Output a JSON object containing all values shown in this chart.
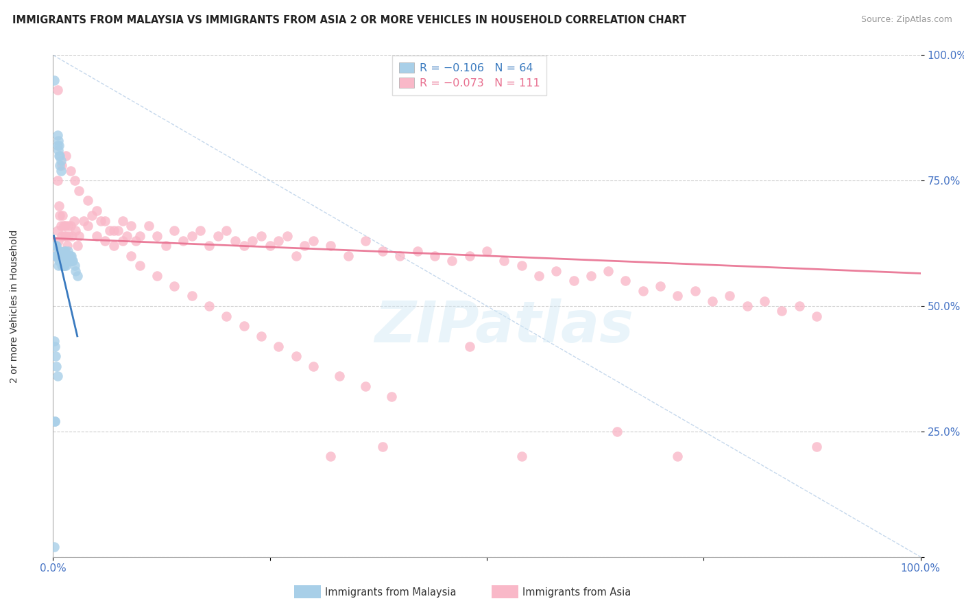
{
  "title": "IMMIGRANTS FROM MALAYSIA VS IMMIGRANTS FROM ASIA 2 OR MORE VEHICLES IN HOUSEHOLD CORRELATION CHART",
  "source": "Source: ZipAtlas.com",
  "ylabel": "2 or more Vehicles in Household",
  "legend_r_blue": "-0.106",
  "legend_n_blue": "64",
  "legend_r_pink": "-0.073",
  "legend_n_pink": "111",
  "legend_label_blue": "Immigrants from Malaysia",
  "legend_label_pink": "Immigrants from Asia",
  "color_blue": "#a8cfe8",
  "color_pink": "#f9b8c8",
  "color_blue_line": "#3a7abf",
  "color_pink_line": "#e87090",
  "color_diag": "#b8cfe8",
  "watermark": "ZIPatlas",
  "blue_x": [
    0.001,
    0.002,
    0.002,
    0.003,
    0.003,
    0.004,
    0.004,
    0.005,
    0.005,
    0.005,
    0.006,
    0.006,
    0.006,
    0.006,
    0.007,
    0.007,
    0.007,
    0.007,
    0.008,
    0.008,
    0.008,
    0.008,
    0.009,
    0.009,
    0.009,
    0.01,
    0.01,
    0.01,
    0.01,
    0.011,
    0.011,
    0.011,
    0.012,
    0.012,
    0.012,
    0.013,
    0.013,
    0.013,
    0.014,
    0.014,
    0.015,
    0.015,
    0.015,
    0.016,
    0.016,
    0.017,
    0.017,
    0.018,
    0.018,
    0.019,
    0.02,
    0.02,
    0.021,
    0.022,
    0.023,
    0.025,
    0.026,
    0.028,
    0.001,
    0.002,
    0.003,
    0.004,
    0.005,
    0.001
  ],
  "blue_y": [
    0.02,
    0.27,
    0.27,
    0.62,
    0.6,
    0.62,
    0.6,
    0.84,
    0.82,
    0.6,
    0.83,
    0.81,
    0.6,
    0.58,
    0.82,
    0.8,
    0.61,
    0.59,
    0.8,
    0.78,
    0.61,
    0.59,
    0.79,
    0.77,
    0.6,
    0.6,
    0.6,
    0.59,
    0.58,
    0.6,
    0.59,
    0.58,
    0.6,
    0.59,
    0.58,
    0.61,
    0.6,
    0.58,
    0.61,
    0.6,
    0.6,
    0.59,
    0.58,
    0.6,
    0.59,
    0.61,
    0.6,
    0.6,
    0.59,
    0.6,
    0.6,
    0.59,
    0.6,
    0.59,
    0.59,
    0.58,
    0.57,
    0.56,
    0.43,
    0.42,
    0.4,
    0.38,
    0.36,
    0.95
  ],
  "pink_x": [
    0.003,
    0.004,
    0.005,
    0.006,
    0.007,
    0.008,
    0.009,
    0.01,
    0.011,
    0.012,
    0.013,
    0.014,
    0.015,
    0.016,
    0.017,
    0.018,
    0.02,
    0.022,
    0.024,
    0.026,
    0.028,
    0.03,
    0.035,
    0.04,
    0.045,
    0.05,
    0.055,
    0.06,
    0.065,
    0.07,
    0.075,
    0.08,
    0.085,
    0.09,
    0.095,
    0.1,
    0.11,
    0.12,
    0.13,
    0.14,
    0.15,
    0.16,
    0.17,
    0.18,
    0.19,
    0.2,
    0.21,
    0.22,
    0.23,
    0.24,
    0.25,
    0.26,
    0.27,
    0.28,
    0.29,
    0.3,
    0.32,
    0.34,
    0.36,
    0.38,
    0.4,
    0.42,
    0.44,
    0.46,
    0.48,
    0.5,
    0.52,
    0.54,
    0.56,
    0.58,
    0.6,
    0.62,
    0.64,
    0.66,
    0.68,
    0.7,
    0.72,
    0.74,
    0.76,
    0.78,
    0.8,
    0.82,
    0.84,
    0.86,
    0.88,
    0.005,
    0.01,
    0.015,
    0.02,
    0.025,
    0.03,
    0.04,
    0.05,
    0.06,
    0.07,
    0.08,
    0.09,
    0.1,
    0.12,
    0.14,
    0.16,
    0.18,
    0.2,
    0.22,
    0.24,
    0.26,
    0.28,
    0.3,
    0.33,
    0.36,
    0.39
  ],
  "pink_y": [
    0.6,
    0.62,
    0.65,
    0.63,
    0.7,
    0.68,
    0.66,
    0.64,
    0.68,
    0.66,
    0.64,
    0.66,
    0.64,
    0.62,
    0.66,
    0.64,
    0.66,
    0.64,
    0.67,
    0.65,
    0.62,
    0.64,
    0.67,
    0.66,
    0.68,
    0.64,
    0.67,
    0.63,
    0.65,
    0.62,
    0.65,
    0.67,
    0.64,
    0.66,
    0.63,
    0.64,
    0.66,
    0.64,
    0.62,
    0.65,
    0.63,
    0.64,
    0.65,
    0.62,
    0.64,
    0.65,
    0.63,
    0.62,
    0.63,
    0.64,
    0.62,
    0.63,
    0.64,
    0.6,
    0.62,
    0.63,
    0.62,
    0.6,
    0.63,
    0.61,
    0.6,
    0.61,
    0.6,
    0.59,
    0.6,
    0.61,
    0.59,
    0.58,
    0.56,
    0.57,
    0.55,
    0.56,
    0.57,
    0.55,
    0.53,
    0.54,
    0.52,
    0.53,
    0.51,
    0.52,
    0.5,
    0.51,
    0.49,
    0.5,
    0.48,
    0.75,
    0.78,
    0.8,
    0.77,
    0.75,
    0.73,
    0.71,
    0.69,
    0.67,
    0.65,
    0.63,
    0.6,
    0.58,
    0.56,
    0.54,
    0.52,
    0.5,
    0.48,
    0.46,
    0.44,
    0.42,
    0.4,
    0.38,
    0.36,
    0.34,
    0.32
  ],
  "pink_extra_x": [
    0.32,
    0.54,
    0.72,
    0.88,
    0.005,
    0.38,
    0.48,
    0.65
  ],
  "pink_extra_y": [
    0.2,
    0.2,
    0.2,
    0.22,
    0.93,
    0.22,
    0.42,
    0.25
  ],
  "xlim": [
    0.0,
    1.0
  ],
  "ylim": [
    0.0,
    1.0
  ],
  "blue_line_x": [
    0.001,
    0.028
  ],
  "blue_line_y": [
    0.64,
    0.44
  ],
  "pink_line_x": [
    0.0,
    1.0
  ],
  "pink_line_y": [
    0.635,
    0.565
  ]
}
